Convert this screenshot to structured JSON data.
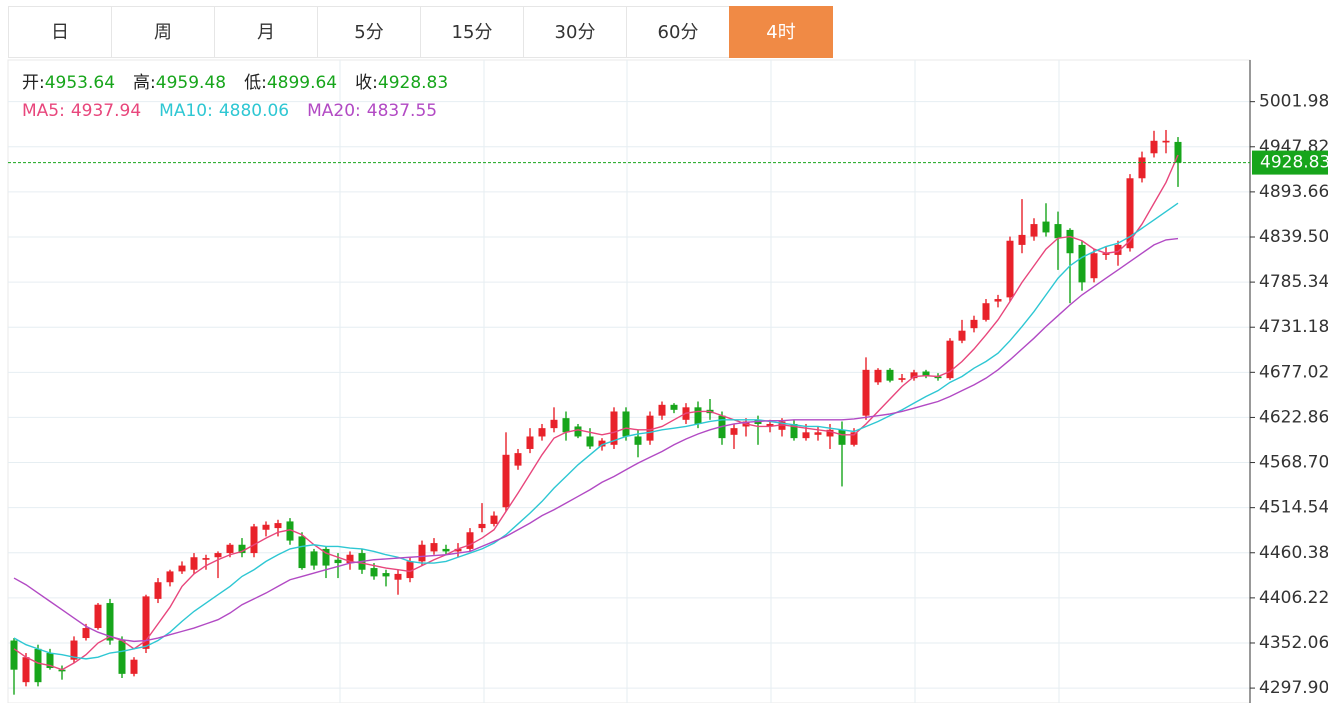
{
  "tabs": [
    "日",
    "周",
    "月",
    "5分",
    "15分",
    "30分",
    "60分",
    "4时"
  ],
  "active_tab": 7,
  "chart_data": {
    "type": "candlestick",
    "ohlc_labels": [
      "开:",
      "高:",
      "低:",
      "收:"
    ],
    "up_color": "#e8222a",
    "down_color": "#17a51b",
    "ylim": [
      4280,
      5052
    ],
    "yticks": [
      {
        "value": 4297.9,
        "label": "4297.90"
      },
      4352.06,
      4406.22,
      4460.38,
      4514.54,
      {
        "value": 4568.7,
        "label": "4568.70"
      },
      4622.86,
      4677.02,
      4731.18,
      4785.34,
      {
        "value": 4839.5,
        "label": "4839.50"
      },
      4893.66,
      4947.82,
      5001.98
    ],
    "grid": true,
    "open": [
      4355,
      4305,
      4345,
      4340,
      4320,
      4332,
      4358,
      4370,
      4400,
      4355,
      4315,
      4345,
      4405,
      4425,
      4438,
      4440,
      4452,
      4455,
      4460,
      4470,
      4460,
      4488,
      4490,
      4498,
      4480,
      4462,
      4465,
      4452,
      4448,
      4460,
      4442,
      4436,
      4428,
      4430,
      4450,
      4462,
      4465,
      4462,
      4465,
      4490,
      4495,
      4515,
      4565,
      4585,
      4600,
      4610,
      4622,
      4612,
      4600,
      4588,
      4590,
      4630,
      4600,
      4595,
      4625,
      4638,
      4620,
      4635,
      4632,
      4625,
      4602,
      4612,
      4620,
      4612,
      4608,
      4615,
      4598,
      4602,
      4600,
      4608,
      4590,
      4625,
      4665,
      4680,
      4668,
      4670,
      4678,
      4672,
      4670,
      4715,
      4730,
      4740,
      4762,
      4767,
      4830,
      4840,
      4858,
      4855,
      4848,
      4830,
      4790,
      4818,
      4818,
      4826,
      4910,
      4940,
      4953,
      4953.64
    ],
    "high": [
      4358,
      4340,
      4350,
      4345,
      4325,
      4360,
      4375,
      4400,
      4405,
      4360,
      4335,
      4410,
      4430,
      4440,
      4450,
      4460,
      4458,
      4462,
      4472,
      4478,
      4495,
      4498,
      4500,
      4502,
      4485,
      4465,
      4468,
      4460,
      4462,
      4465,
      4448,
      4440,
      4440,
      4455,
      4475,
      4478,
      4470,
      4472,
      4490,
      4520,
      4510,
      4605,
      4585,
      4610,
      4615,
      4635,
      4630,
      4615,
      4610,
      4598,
      4635,
      4635,
      4608,
      4630,
      4642,
      4640,
      4640,
      4642,
      4645,
      4630,
      4615,
      4622,
      4625,
      4620,
      4622,
      4620,
      4615,
      4612,
      4615,
      4618,
      4610,
      4695,
      4682,
      4682,
      4675,
      4680,
      4680,
      4676,
      4718,
      4740,
      4745,
      4765,
      4770,
      4840,
      4885,
      4862,
      4880,
      4870,
      4850,
      4835,
      4825,
      4828,
      4835,
      4915,
      4942,
      4967,
      4968,
      4959.48
    ],
    "low": [
      4290,
      4300,
      4300,
      4320,
      4308,
      4328,
      4355,
      4368,
      4350,
      4310,
      4312,
      4340,
      4400,
      4420,
      4435,
      4435,
      4440,
      4430,
      4455,
      4455,
      4455,
      4480,
      4480,
      4470,
      4440,
      4440,
      4430,
      4430,
      4440,
      4435,
      4428,
      4420,
      4410,
      4425,
      4445,
      4458,
      4458,
      4455,
      4462,
      4485,
      4492,
      4510,
      4560,
      4580,
      4595,
      4605,
      4595,
      4598,
      4585,
      4583,
      4585,
      4595,
      4575,
      4590,
      4620,
      4628,
      4615,
      4610,
      4620,
      4590,
      4585,
      4600,
      4590,
      4605,
      4600,
      4595,
      4595,
      4595,
      4585,
      4540,
      4588,
      4620,
      4662,
      4665,
      4665,
      4667,
      4670,
      4667,
      4668,
      4712,
      4725,
      4738,
      4755,
      4762,
      4820,
      4835,
      4840,
      4800,
      4760,
      4775,
      4785,
      4812,
      4805,
      4822,
      4905,
      4935,
      4940,
      4899.64
    ],
    "close": [
      4320,
      4335,
      4305,
      4322,
      4318,
      4355,
      4370,
      4398,
      4355,
      4315,
      4332,
      4408,
      4425,
      4438,
      4445,
      4455,
      4454,
      4460,
      4470,
      4460,
      4492,
      4494,
      4496,
      4475,
      4442,
      4445,
      4445,
      4448,
      4458,
      4440,
      4432,
      4432,
      4435,
      4450,
      4470,
      4472,
      4462,
      4465,
      4485,
      4495,
      4505,
      4578,
      4580,
      4600,
      4610,
      4620,
      4605,
      4600,
      4588,
      4595,
      4630,
      4600,
      4590,
      4625,
      4638,
      4632,
      4635,
      4615,
      4628,
      4598,
      4610,
      4618,
      4615,
      4615,
      4618,
      4598,
      4605,
      4605,
      4608,
      4590,
      4605,
      4680,
      4680,
      4667,
      4670,
      4677,
      4673,
      4670,
      4715,
      4727,
      4740,
      4760,
      4765,
      4835,
      4842,
      4855,
      4845,
      4838,
      4820,
      4785,
      4820,
      4820,
      4830,
      4910,
      4935,
      4955,
      4955,
      4928.83
    ],
    "series": [
      {
        "name": "MA5:",
        "color": "#e8467c",
        "values": [
          4345,
          4335,
          4328,
          4325,
          4320,
          4328,
          4338,
          4352,
          4360,
          4355,
          4345,
          4355,
          4375,
          4395,
          4420,
          4435,
          4445,
          4452,
          4458,
          4462,
          4470,
          4478,
          4485,
          4488,
          4482,
          4470,
          4460,
          4455,
          4450,
          4448,
          4445,
          4442,
          4440,
          4438,
          4445,
          4452,
          4458,
          4465,
          4470,
          4478,
          4488,
          4510,
          4532,
          4555,
          4578,
          4598,
          4605,
          4608,
          4605,
          4602,
          4605,
          4610,
          4608,
          4608,
          4612,
          4620,
          4628,
          4630,
          4630,
          4625,
          4620,
          4615,
          4612,
          4612,
          4614,
          4612,
          4610,
          4608,
          4606,
          4602,
          4602,
          4615,
          4630,
          4645,
          4660,
          4672,
          4673,
          4672,
          4678,
          4690,
          4705,
          4722,
          4740,
          4762,
          4785,
          4805,
          4825,
          4838,
          4840,
          4835,
          4825,
          4820,
          4822,
          4835,
          4855,
          4880,
          4905,
          4937.94
        ]
      },
      {
        "name": "MA10:",
        "color": "#2ec7d3",
        "values": [
          4358,
          4350,
          4345,
          4340,
          4338,
          4335,
          4333,
          4335,
          4340,
          4342,
          4345,
          4348,
          4355,
          4365,
          4378,
          4390,
          4400,
          4410,
          4420,
          4432,
          4440,
          4450,
          4458,
          4465,
          4468,
          4470,
          4468,
          4468,
          4466,
          4465,
          4462,
          4458,
          4455,
          4450,
          4448,
          4448,
          4450,
          4455,
          4460,
          4465,
          4472,
          4482,
          4495,
          4508,
          4522,
          4538,
          4552,
          4566,
          4578,
          4590,
          4595,
          4600,
          4603,
          4605,
          4608,
          4610,
          4612,
          4615,
          4618,
          4620,
          4620,
          4620,
          4620,
          4618,
          4616,
          4614,
          4612,
          4612,
          4610,
          4608,
          4606,
          4612,
          4618,
          4625,
          4632,
          4640,
          4648,
          4655,
          4665,
          4672,
          4682,
          4690,
          4700,
          4715,
          4732,
          4750,
          4770,
          4790,
          4805,
          4815,
          4822,
          4828,
          4832,
          4840,
          4850,
          4860,
          4870,
          4880.06
        ]
      },
      {
        "name": "MA20:",
        "color": "#b24ac4",
        "values": [
          4430,
          4422,
          4412,
          4402,
          4392,
          4382,
          4372,
          4365,
          4360,
          4356,
          4354,
          4355,
          4358,
          4362,
          4366,
          4370,
          4375,
          4380,
          4388,
          4398,
          4405,
          4412,
          4420,
          4428,
          4432,
          4436,
          4440,
          4444,
          4448,
          4450,
          4452,
          4453,
          4454,
          4455,
          4456,
          4457,
          4458,
          4460,
          4462,
          4468,
          4474,
          4480,
          4488,
          4496,
          4505,
          4512,
          4520,
          4528,
          4536,
          4545,
          4552,
          4560,
          4568,
          4575,
          4582,
          4590,
          4597,
          4603,
          4608,
          4612,
          4615,
          4617,
          4618,
          4619,
          4619,
          4620,
          4620,
          4620,
          4620,
          4620,
          4621,
          4623,
          4625,
          4627,
          4630,
          4634,
          4638,
          4642,
          4648,
          4655,
          4662,
          4670,
          4680,
          4692,
          4705,
          4718,
          4732,
          4745,
          4758,
          4770,
          4780,
          4790,
          4800,
          4810,
          4820,
          4830,
          4836,
          4837.55
        ]
      }
    ]
  }
}
